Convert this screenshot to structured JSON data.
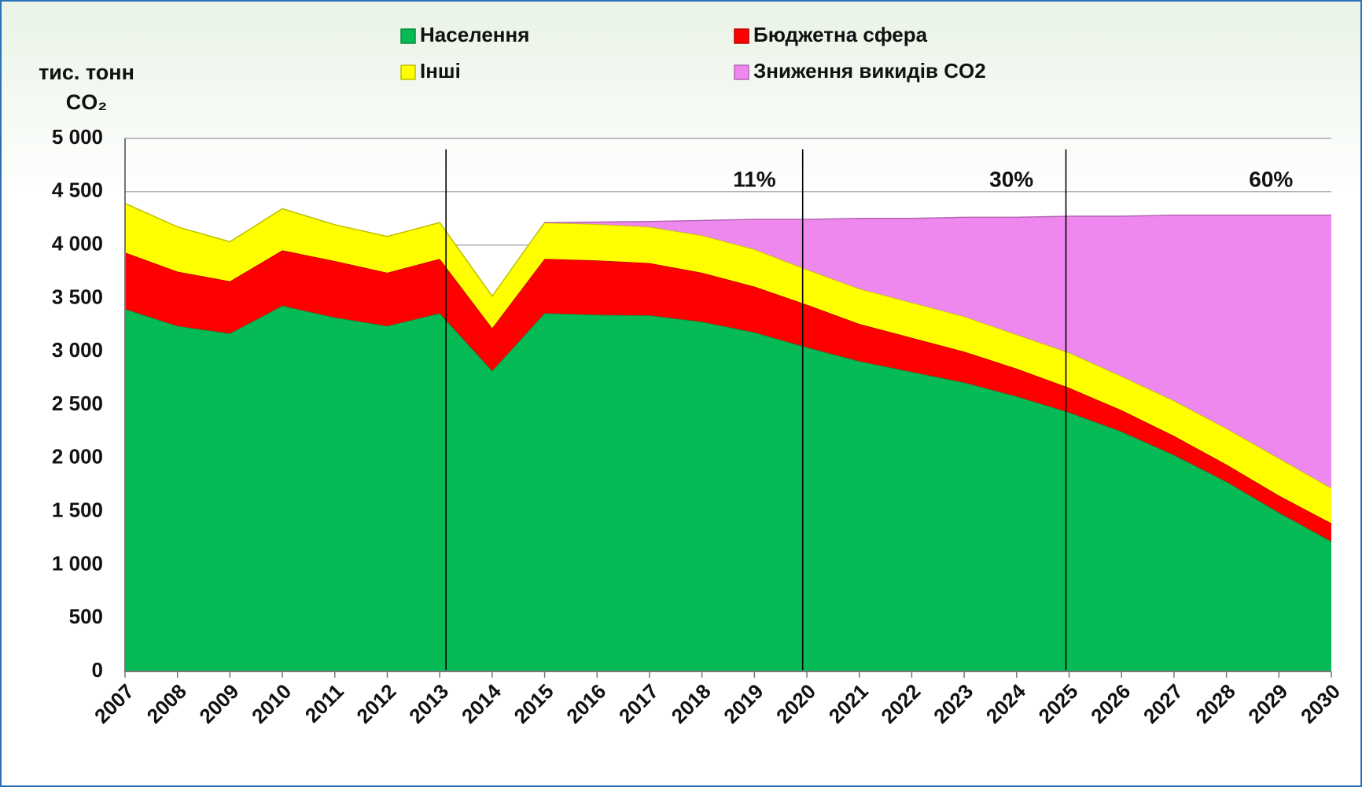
{
  "chart_data": {
    "type": "stacked_area",
    "ylabel": "тис. тонн CO₂",
    "categories": [
      "2007",
      "2008",
      "2009",
      "2010",
      "2011",
      "2012",
      "2013",
      "2014",
      "2015",
      "2016",
      "2017",
      "2018",
      "2019",
      "2020",
      "2021",
      "2022",
      "2023",
      "2024",
      "2025",
      "2026",
      "2027",
      "2028",
      "2029",
      "2030"
    ],
    "series": [
      {
        "name": "Населення",
        "color": "#06bb55",
        "values": [
          3400,
          3240,
          3170,
          3430,
          3320,
          3240,
          3360,
          2820,
          3360,
          3345,
          3340,
          3280,
          3180,
          3040,
          2910,
          2810,
          2710,
          2580,
          2430,
          2250,
          2030,
          1780,
          1490,
          1220
        ]
      },
      {
        "name": "Бюджетна сфера",
        "color": "#ff0000",
        "values": [
          530,
          510,
          490,
          520,
          530,
          500,
          510,
          400,
          510,
          510,
          490,
          460,
          430,
          400,
          350,
          320,
          290,
          260,
          230,
          200,
          180,
          160,
          160,
          170
        ]
      },
      {
        "name": "Інші",
        "color": "#ffff00",
        "values": [
          460,
          420,
          370,
          390,
          340,
          340,
          340,
          300,
          340,
          340,
          340,
          350,
          350,
          330,
          330,
          330,
          330,
          320,
          330,
          320,
          330,
          340,
          350,
          330
        ]
      },
      {
        "name": "Зниження викидів CO2",
        "color": "#ee88ee",
        "values": [
          null,
          null,
          null,
          null,
          null,
          null,
          null,
          null,
          0,
          20,
          50,
          140,
          280,
          470,
          660,
          790,
          930,
          1100,
          1280,
          1500,
          1740,
          2000,
          2280,
          2560
        ]
      }
    ],
    "ylim": [
      0,
      5000
    ],
    "yticks": [
      0,
      500,
      {
        "value": 1000,
        "label": "1 000"
      },
      {
        "value": 1500,
        "label": "1 500"
      },
      {
        "value": 2000,
        "label": "2 000"
      },
      {
        "value": 2500,
        "label": "2 500"
      },
      {
        "value": 3000,
        "label": "3 000"
      },
      {
        "value": 3500,
        "label": "3 500"
      },
      {
        "value": 4000,
        "label": "4 000"
      },
      {
        "value": 4500,
        "label": "4 500"
      },
      {
        "value": 5000,
        "label": "5 000"
      }
    ],
    "grid": true,
    "annotations": [
      "11%",
      "30%",
      "60%"
    ]
  }
}
